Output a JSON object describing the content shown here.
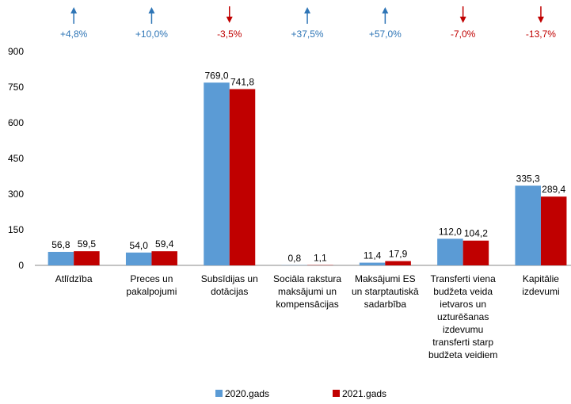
{
  "chart_data": {
    "type": "bar",
    "categories": [
      "Atlīdzība",
      "Preces un\npakalpojumi",
      "Subsīdijas un\ndotācijas",
      "Sociāla rakstura\nmaksājumi un\nkompensācijas",
      "Maksājumi ES\nun starptautiskā\nsadarbība",
      "Transferti viena\nbudžeta veida\nietvaros un\nuzturēšanas\nizdevumu\ntransferti starp\nbudžeta veidiem",
      "Kapitālie\nizdevumi"
    ],
    "series": [
      {
        "name": "2020.gads",
        "color": "#5b9bd5",
        "values": [
          56.8,
          54.0,
          769.0,
          0.8,
          11.4,
          112.0,
          335.3
        ],
        "value_labels": [
          "56,8",
          "54,0",
          "769,0",
          "0,8",
          "11,4",
          "112,0",
          "335,3"
        ]
      },
      {
        "name": "2021.gads",
        "color": "#c00000",
        "values": [
          59.5,
          59.4,
          741.8,
          1.1,
          17.9,
          104.2,
          289.4
        ],
        "value_labels": [
          "59,5",
          "59,4",
          "741,8",
          "1,1",
          "17,9",
          "104,2",
          "289,4"
        ]
      }
    ],
    "changes": {
      "values": [
        4.8,
        10.0,
        -3.5,
        37.5,
        57.0,
        -7.0,
        -13.7
      ],
      "labels": [
        "+4,8%",
        "+10,0%",
        "-3,5%",
        "+37,5%",
        "+57,0%",
        "-7,0%",
        "-13,7%"
      ],
      "up_color": "#2e75b6",
      "down_color": "#c00000"
    },
    "ylim": [
      0,
      900
    ],
    "yticks": [
      0,
      150,
      300,
      450,
      600,
      750,
      900
    ],
    "grid": false,
    "legend": "bottom"
  }
}
